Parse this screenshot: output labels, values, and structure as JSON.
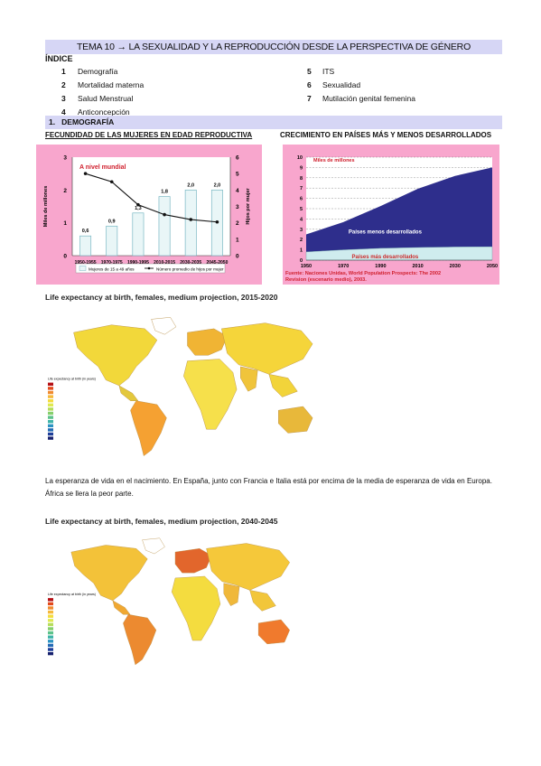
{
  "document": {
    "title": "TEMA 10 → LA SEXUALIDAD Y LA REPRODUCCIÓN DESDE LA PERSPECTIVA DE GÉNERO"
  },
  "index": {
    "heading": "ÍNDICE",
    "items": [
      {
        "num": "1",
        "label": "Demografía"
      },
      {
        "num": "2",
        "label": "Mortalidad materna"
      },
      {
        "num": "3",
        "label": "Salud Menstrual"
      },
      {
        "num": "4",
        "label": "Anticoncepción"
      },
      {
        "num": "5",
        "label": "ITS"
      },
      {
        "num": "6",
        "label": "Sexualidad"
      },
      {
        "num": "7",
        "label": "Mutilación genital femenina"
      }
    ]
  },
  "section1": {
    "heading": "1.   DEMOGRAFÍA",
    "subheading_left": "FECUNDIDAD DE LAS MUJERES EN EDAD REPRODUCTIVA",
    "subheading_right": "CRECIMIENTO EN PAÍSES MÁS Y MENOS DESARROLLADOS"
  },
  "chart_data": [
    {
      "type": "bar",
      "title": "A nivel mundial",
      "categories": [
        "1950-1955",
        "1970-1975",
        "1990-1995",
        "2010-2015",
        "2030-2035",
        "2045-2050"
      ],
      "ylabel": "Miles de millones",
      "y2label": "Hijos por mujer",
      "ylim": [
        0,
        3
      ],
      "y2lim": [
        0,
        6
      ],
      "yticks": [
        "0",
        "1",
        "2",
        "3"
      ],
      "y2ticks": [
        "0",
        "1",
        "2",
        "3",
        "4",
        "5",
        "6"
      ],
      "bar_labels": [
        "0,6",
        "0,9",
        "1,3",
        "1,8",
        "2,0",
        "2,0"
      ],
      "series": [
        {
          "name": "Mujeres de 15 a 49 años",
          "type": "bar",
          "values": [
            0.6,
            0.9,
            1.3,
            1.8,
            2.0,
            2.0
          ]
        },
        {
          "name": "Número promedio de hijos por mujer",
          "type": "line",
          "axis": "right",
          "values": [
            5.0,
            4.5,
            3.1,
            2.5,
            2.2,
            2.05
          ]
        }
      ],
      "colors": {
        "bar_fill": "#e9f6f7",
        "bar_stroke": "#7ab8c4",
        "line": "#111111",
        "title": "#d0202e"
      }
    },
    {
      "type": "area",
      "title": "Miles de millones",
      "x": [
        1950,
        1970,
        1990,
        2010,
        2030,
        2050
      ],
      "xticks": [
        "1950",
        "1970",
        "1990",
        "2010",
        "2030",
        "2050"
      ],
      "ylim": [
        0,
        10
      ],
      "yticks": [
        "0",
        "1",
        "2",
        "3",
        "4",
        "5",
        "6",
        "7",
        "8",
        "9",
        "10"
      ],
      "series": [
        {
          "name": "Países más desarrollados",
          "values": [
            0.8,
            1.0,
            1.15,
            1.23,
            1.28,
            1.3
          ]
        },
        {
          "name": "Países menos desarrollados",
          "values": [
            1.7,
            2.7,
            4.1,
            5.7,
            6.9,
            7.7
          ]
        }
      ],
      "source": "Fuente: Naciones Unidas, World Population Prospects: The 2002 Revision (escenario medio), 2003.",
      "colors": {
        "developed": "#cfecee",
        "developing": "#2e2e8c",
        "title": "#d0202e",
        "source": "#d0202e"
      }
    }
  ],
  "maps": [
    {
      "title": "Life expectancy at birth, females, medium projection, 2015-2020",
      "legend_title": "Life expectancy at birth (in years)"
    },
    {
      "title": "Life expectancy at birth, females, medium projection, 2040-2045",
      "legend_title": "Life expectancy at birth (in years)"
    }
  ],
  "paragraph": "La esperanza de vida en el nacimiento. En España, junto con Francia e Italia está por encima de la media de esperanza de vida en Europa. África se llera la peor parte."
}
